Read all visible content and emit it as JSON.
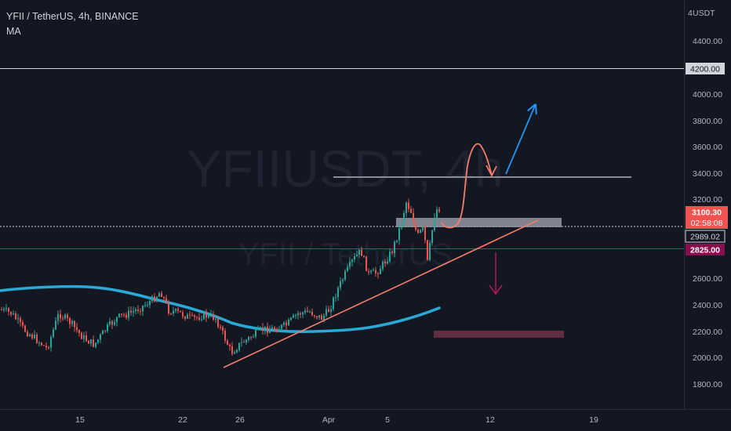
{
  "legend": {
    "symbol_line": "YFII / TetherUS, 4h, BINANCE",
    "indicator": "MA"
  },
  "watermark": {
    "main": "YFIIUSDT, 4h",
    "sub": "YFII / TetherUS"
  },
  "price_axis": {
    "currency": "USDT",
    "ticks": [
      "4400.00",
      "4000.00",
      "3800.00",
      "3600.00",
      "3400.00",
      "3200.00",
      "2600.00",
      "2400.00",
      "2200.00",
      "2000.00",
      "1800.00"
    ]
  },
  "price_tags": {
    "resistance_top": "4200.00",
    "last_price": "3100.30",
    "countdown": "02:58:08",
    "support_line": "2989.02",
    "support_low": "2825.00"
  },
  "time_axis": {
    "ticks": [
      "15",
      "22",
      "26",
      "Apr",
      "5",
      "12",
      "19"
    ]
  },
  "colors": {
    "background": "#131722",
    "up": "#26a69a",
    "down": "#ef5350",
    "ma": "#2aa9d6",
    "trendline": "#f77c6b",
    "arrow_up": "#2196f3",
    "arrow_down": "#c2185b",
    "gray_zone": "#9598a1"
  },
  "chart_data": {
    "type": "candlestick",
    "symbol": "YFII / TetherUS",
    "interval": "4h",
    "exchange": "BINANCE",
    "ylim": [
      1700,
      4560
    ],
    "x_tick_labels": [
      "15",
      "22",
      "26",
      "Apr",
      "5",
      "12",
      "19"
    ],
    "y_tick_labels": [
      4400,
      4000,
      3800,
      3600,
      3400,
      3200,
      2600,
      2400,
      2200,
      2000,
      1800
    ],
    "moving_average_trace": [
      {
        "x": "2021-03-10",
        "y": 2520
      },
      {
        "x": "2021-03-14",
        "y": 2530
      },
      {
        "x": "2021-03-18",
        "y": 2490
      },
      {
        "x": "2021-03-20",
        "y": 2460
      },
      {
        "x": "2021-03-23",
        "y": 2380
      },
      {
        "x": "2021-03-25",
        "y": 2280
      },
      {
        "x": "2021-03-27",
        "y": 2230
      },
      {
        "x": "2021-03-29",
        "y": 2210
      },
      {
        "x": "2021-04-01",
        "y": 2220
      },
      {
        "x": "2021-04-04",
        "y": 2280
      },
      {
        "x": "2021-04-06",
        "y": 2330
      },
      {
        "x": "2021-04-07",
        "y": 2370
      }
    ],
    "candles_trace": [
      {
        "x": "2021-03-10",
        "y": 2380
      },
      {
        "x": "2021-03-12",
        "y": 2250
      },
      {
        "x": "2021-03-13",
        "y": 2080
      },
      {
        "x": "2021-03-14",
        "y": 2320
      },
      {
        "x": "2021-03-15",
        "y": 2200
      },
      {
        "x": "2021-03-17",
        "y": 2120
      },
      {
        "x": "2021-03-18",
        "y": 2300
      },
      {
        "x": "2021-03-20",
        "y": 2380
      },
      {
        "x": "2021-03-21",
        "y": 2520
      },
      {
        "x": "2021-03-22",
        "y": 2350
      },
      {
        "x": "2021-03-23",
        "y": 2340
      },
      {
        "x": "2021-03-24",
        "y": 2300
      },
      {
        "x": "2021-03-25",
        "y": 2050
      },
      {
        "x": "2021-03-26",
        "y": 2150
      },
      {
        "x": "2021-03-27",
        "y": 2230
      },
      {
        "x": "2021-03-29",
        "y": 2250
      },
      {
        "x": "2021-03-31",
        "y": 2320
      },
      {
        "x": "2021-04-01",
        "y": 2380
      },
      {
        "x": "2021-04-02",
        "y": 2600
      },
      {
        "x": "2021-04-03",
        "y": 2820
      },
      {
        "x": "2021-04-04",
        "y": 2850
      },
      {
        "x": "2021-04-05",
        "y": 2720
      },
      {
        "x": "2021-04-06",
        "y": 3000
      },
      {
        "x": "2021-04-06T12",
        "y": 3280
      },
      {
        "x": "2021-04-07",
        "y": 2800
      },
      {
        "x": "2021-04-07T12",
        "y": 3050
      },
      {
        "x": "2021-04-08",
        "y": 3100
      }
    ],
    "horizontal_lines": [
      {
        "price": 4200,
        "label": "4200.00"
      },
      {
        "price": 2989.02,
        "label": "2989.02"
      },
      {
        "price": 2825,
        "label": "2825.00"
      }
    ],
    "zones": [
      {
        "label": "resistance",
        "from": 3370,
        "to": 3370
      },
      {
        "label": "support",
        "from": 2990,
        "to": 3060
      },
      {
        "label": "target",
        "from": 2170,
        "to": 2220
      }
    ]
  }
}
